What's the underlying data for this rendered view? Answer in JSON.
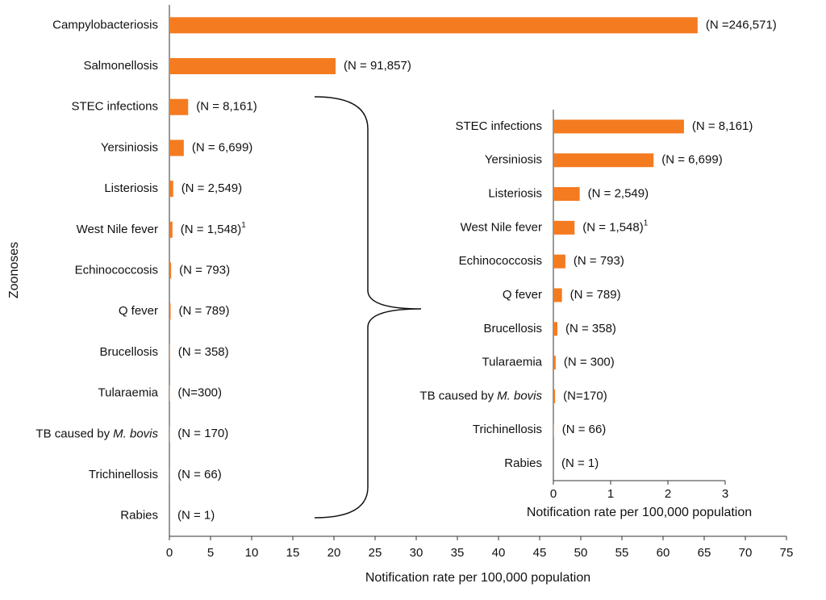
{
  "chart_data": [
    {
      "type": "bar",
      "orientation": "horizontal",
      "color": "#f47b20",
      "y_axis_label": "Zoonoses",
      "x_axis_label": "Notification rate per 100,000 population",
      "categories": [
        "Campylobacteriosis",
        "Salmonellosis",
        "STEC infections",
        "Yersiniosis",
        "Listeriosis",
        "West Nile fever",
        "Echinococcosis",
        "Q fever",
        "Brucellosis",
        "Tularaemia",
        {
          "label": "TB caused by",
          "italic": "M. bovis"
        },
        "Trichinellosis",
        "Rabies"
      ],
      "values": [
        64.2,
        20.2,
        2.28,
        1.75,
        0.46,
        0.37,
        0.21,
        0.15,
        0.07,
        0.04,
        0.03,
        0.01,
        0
      ],
      "annotations": [
        "(N =246,571)",
        "(N = 91,857)",
        "(N = 8,161)",
        "(N = 6,699)",
        "(N = 2,549)",
        {
          "text": "(N = 1,548)",
          "superscript": "1"
        },
        "(N = 793)",
        "(N = 789)",
        "(N = 358)",
        "(N=300)",
        "(N = 170)",
        "(N = 66)",
        "(N = 1)"
      ],
      "xlim": [
        0,
        75
      ],
      "xticks": [
        0,
        5,
        10,
        15,
        20,
        25,
        30,
        35,
        40,
        45,
        50,
        55,
        60,
        65,
        70,
        75
      ]
    },
    {
      "type": "bar",
      "orientation": "horizontal",
      "color": "#f47b20",
      "x_axis_label": "Notification rate per 100,000 population",
      "categories": [
        "STEC infections",
        "Yersiniosis",
        "Listeriosis",
        "West Nile fever",
        "Echinococcosis",
        "Q fever",
        "Brucellosis",
        "Tularaemia",
        {
          "label": "TB caused by",
          "italic": "M. bovis"
        },
        "Trichinellosis",
        "Rabies"
      ],
      "values": [
        2.28,
        1.75,
        0.46,
        0.37,
        0.21,
        0.15,
        0.07,
        0.04,
        0.03,
        0.01,
        0
      ],
      "annotations": [
        "(N = 8,161)",
        "(N = 6,699)",
        "(N = 2,549)",
        {
          "text": "(N = 1,548)",
          "superscript": "1"
        },
        "(N = 793)",
        "(N = 789)",
        "(N = 358)",
        "(N = 300)",
        "(N=170)",
        "(N = 66)",
        "(N = 1)"
      ],
      "xlim": [
        0,
        3
      ],
      "xticks": [
        0,
        1,
        2,
        3
      ]
    }
  ]
}
